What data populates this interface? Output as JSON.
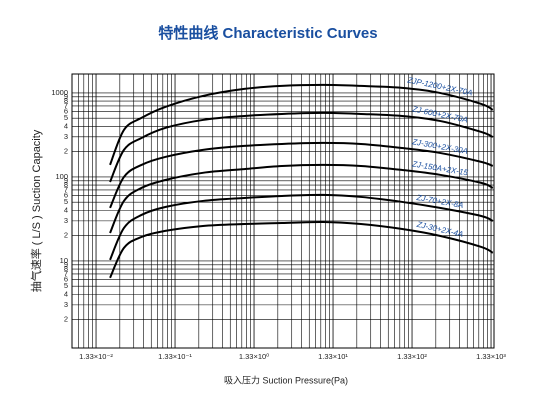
{
  "chart_data": {
    "type": "line",
    "title": "特性曲线  Characteristic Curves",
    "x_label": "吸入压力 Suction Pressure(Pa)",
    "y_label": "抽气速率 ( L/S ) Suction Capacity",
    "log_x": true,
    "log_y": true,
    "grid": true,
    "x": [
      0.02,
      0.03,
      0.05,
      0.1,
      0.3,
      1,
      3,
      10,
      30,
      100,
      300,
      1000,
      1400
    ],
    "series": [
      {
        "name": "ZJP-1200+2X-70A",
        "color": "#000000",
        "label_color": "#1a4fa0",
        "values": [
          139,
          363,
          504,
          681,
          921,
          1116,
          1212,
          1245,
          1212,
          1148,
          1000,
          740,
          628
        ]
      },
      {
        "name": "ZJ-600+2X-70A",
        "color": "#000000",
        "label_color": "#1a4fa0",
        "values": [
          87,
          210,
          291,
          383,
          477,
          532,
          562,
          578,
          562,
          532,
          464,
          343,
          299
        ]
      },
      {
        "name": "ZJ-300+2X-30A",
        "color": "#000000",
        "label_color": "#1a4fa0",
        "values": [
          42.8,
          100,
          139,
          173,
          210,
          234,
          247,
          254,
          247,
          221,
          193,
          151,
          135
        ]
      },
      {
        "name": "ZJ-150A+2X-15",
        "color": "#000000",
        "label_color": "#1a4fa0",
        "values": [
          21.5,
          51.8,
          74,
          92,
          112,
          124,
          135,
          139,
          135,
          121,
          106,
          85,
          74
        ]
      },
      {
        "name": "ZJ-70+2X-8A",
        "color": "#000000",
        "label_color": "#1a4fa0",
        "values": [
          10.3,
          24.7,
          35.3,
          43.9,
          51.8,
          56.2,
          59.4,
          61.1,
          57.8,
          50.4,
          42.8,
          34.3,
          29.9
        ]
      },
      {
        "name": "ZJ-30+2X-4A",
        "color": "#000000",
        "label_color": "#1a4fa0",
        "values": [
          6.3,
          14.3,
          19.3,
          22.8,
          26.1,
          27.5,
          28.3,
          29.1,
          27.5,
          24.0,
          19.9,
          14.7,
          12.5
        ]
      }
    ],
    "xlim": [
      0.0066,
      1450
    ],
    "ylim": [
      0.92,
      1680
    ],
    "xticks": [
      {
        "value": 0.0133,
        "label": "1.33×10⁻²"
      },
      {
        "value": 0.133,
        "label": "1.33×10⁻¹"
      },
      {
        "value": 1.33,
        "label": "1.33×10⁰"
      },
      {
        "value": 13.3,
        "label": "1.33×10¹"
      },
      {
        "value": 133,
        "label": "1.33×10²"
      },
      {
        "value": 1330,
        "label": "1.33×10³"
      }
    ],
    "xgrid": [
      0.00798,
      0.00931,
      0.01064,
      0.01197,
      0.0266,
      0.0399,
      0.0532,
      0.0665,
      0.0798,
      0.0931,
      0.1064,
      0.1197,
      0.266,
      0.399,
      0.532,
      0.665,
      0.798,
      0.931,
      1.064,
      1.197,
      2.66,
      3.99,
      5.32,
      6.65,
      7.98,
      9.31,
      10.64,
      11.97,
      26.6,
      39.9,
      53.2,
      66.5,
      79.8,
      93.1,
      106.4,
      119.7,
      266,
      399,
      532,
      665,
      798,
      931,
      1064,
      1197
    ],
    "yticks": [
      1000,
      {
        "value": 900,
        "label": "9"
      },
      {
        "value": 800,
        "label": "8"
      },
      {
        "value": 700,
        "label": "7"
      },
      {
        "value": 600,
        "label": "6"
      },
      {
        "value": 500,
        "label": "5"
      },
      {
        "value": 400,
        "label": "4"
      },
      {
        "value": 300,
        "label": "3"
      },
      {
        "value": 200,
        "label": "2"
      },
      100,
      {
        "value": 90,
        "label": "9"
      },
      {
        "value": 80,
        "label": "8"
      },
      {
        "value": 70,
        "label": "7"
      },
      {
        "value": 60,
        "label": "6"
      },
      {
        "value": 50,
        "label": "5"
      },
      {
        "value": 40,
        "label": "4"
      },
      {
        "value": 30,
        "label": "3"
      },
      {
        "value": 20,
        "label": "2"
      },
      10,
      {
        "value": 9,
        "label": "9"
      },
      {
        "value": 8,
        "label": "8"
      },
      {
        "value": 7,
        "label": "7"
      },
      {
        "value": 6,
        "label": "6"
      },
      {
        "value": 5,
        "label": "5"
      },
      {
        "value": 4,
        "label": "4"
      },
      {
        "value": 3,
        "label": "3"
      },
      {
        "value": 2,
        "label": "2"
      }
    ]
  }
}
